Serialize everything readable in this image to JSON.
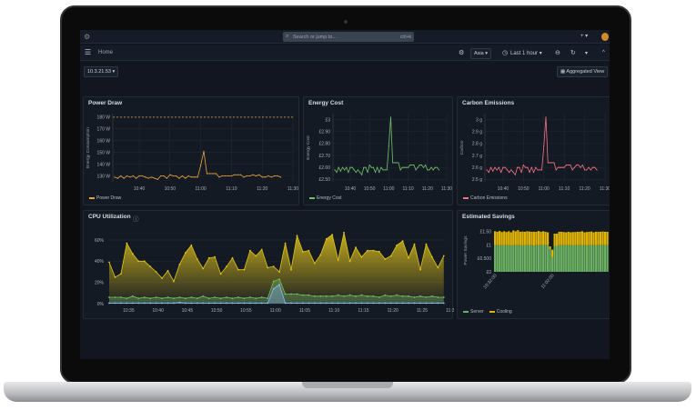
{
  "topbar": {
    "search_placeholder": "Search or jump to...",
    "shortcut": "ctrl+k",
    "add_label": "+ ▾"
  },
  "navbar": {
    "breadcrumb": "Home",
    "tz_label": "Asia ▾",
    "time_range": "Last 1 hour ▾",
    "refresh_chevron": "▾",
    "collapse": "^"
  },
  "controls": {
    "host_select": "10.3.21.53 ▾",
    "aggregated_view": "Aggregated View"
  },
  "colors": {
    "power": "#e8a33a",
    "cost": "#73bf69",
    "carbon": "#f2737f",
    "cpu_main": "#e3c51a",
    "cpu_green": "#73bf69",
    "cpu_blue": "#8ab8ff",
    "server": "#6cb163",
    "cooling": "#e0b400"
  },
  "panels": {
    "power": {
      "title": "Power Draw",
      "ylabel": "Energy Consumption",
      "yticks": [
        "130 W",
        "140 W",
        "150 W",
        "160 W",
        "170 W",
        "180 W"
      ],
      "ymin": 125,
      "ymax": 183,
      "threshold": 180,
      "legend": "Power Draw",
      "values": [
        129,
        128,
        130,
        128,
        130,
        129,
        130,
        128,
        130,
        130,
        129,
        128,
        129,
        128,
        127,
        130,
        130,
        128,
        131,
        130,
        130,
        128,
        130,
        128,
        130,
        129,
        129,
        129,
        139,
        151,
        132,
        132,
        132,
        132,
        129,
        130,
        130,
        130,
        130,
        131,
        131,
        131,
        129,
        130,
        130,
        131,
        130,
        131,
        129,
        129,
        130,
        129,
        130,
        130,
        129
      ]
    },
    "cost": {
      "title": "Energy Cost",
      "ylabel": "Energy Cost",
      "yticks": [
        "£2.50",
        "£2.60",
        "£2.70",
        "£2.80",
        "£2.90",
        "£3"
      ],
      "ymin": 2.48,
      "ymax": 3.05,
      "legend": "Energy Cost",
      "values": [
        2.58,
        2.56,
        2.6,
        2.57,
        2.6,
        2.58,
        2.6,
        2.56,
        2.6,
        2.6,
        2.58,
        2.56,
        2.58,
        2.56,
        2.54,
        2.6,
        2.6,
        2.56,
        2.62,
        2.6,
        2.6,
        2.56,
        2.6,
        2.56,
        2.6,
        2.58,
        2.58,
        2.58,
        2.78,
        3.02,
        2.64,
        2.64,
        2.64,
        2.64,
        2.58,
        2.6,
        2.6,
        2.6,
        2.6,
        2.62,
        2.62,
        2.62,
        2.58,
        2.6,
        2.62,
        2.62,
        2.6,
        2.62,
        2.58,
        2.58,
        2.6,
        2.58,
        2.6,
        2.6,
        2.58
      ]
    },
    "carbon": {
      "title": "Carbon Emissions",
      "ylabel": "Carbon",
      "yticks": [
        "2.5 g",
        "2.6 g",
        "2.7 g",
        "2.8 g",
        "2.9 g",
        "3 g"
      ],
      "ymin": 2.48,
      "ymax": 3.05,
      "legend": "Carbon Emissions",
      "values": [
        2.58,
        2.56,
        2.6,
        2.57,
        2.6,
        2.58,
        2.6,
        2.56,
        2.6,
        2.6,
        2.58,
        2.56,
        2.58,
        2.56,
        2.54,
        2.6,
        2.6,
        2.56,
        2.62,
        2.6,
        2.6,
        2.56,
        2.6,
        2.56,
        2.6,
        2.58,
        2.58,
        2.58,
        2.78,
        3.02,
        2.64,
        2.64,
        2.64,
        2.64,
        2.58,
        2.6,
        2.6,
        2.6,
        2.6,
        2.62,
        2.62,
        2.62,
        2.58,
        2.6,
        2.62,
        2.62,
        2.6,
        2.62,
        2.58,
        2.58,
        2.6,
        2.58,
        2.6,
        2.6,
        2.58
      ]
    },
    "xticks": [
      "10:40",
      "10:50",
      "11:00",
      "11:10",
      "11:20",
      "11:30"
    ],
    "cpu": {
      "title": "CPU Utilization",
      "info_icon": "info-circle-icon",
      "yticks": [
        "0%",
        "20%",
        "40%",
        "60%"
      ],
      "ymax": 72,
      "xticks": [
        "10:35",
        "10:40",
        "10:45",
        "10:50",
        "10:55",
        "11:00",
        "11:05",
        "11:10",
        "11:15",
        "11:20",
        "11:25",
        "11:30"
      ],
      "series": [
        {
          "values": [
            39,
            25,
            28,
            57,
            47,
            40,
            40,
            35,
            30,
            24,
            31,
            21,
            37,
            48,
            55,
            42,
            33,
            43,
            44,
            28,
            35,
            43,
            32,
            32,
            50,
            45,
            51,
            34,
            35,
            30,
            57,
            32,
            64,
            49,
            50,
            38,
            46,
            61,
            65,
            41,
            67,
            40,
            53,
            44,
            50,
            50,
            49,
            42,
            45,
            55,
            59,
            43,
            56,
            32,
            56,
            44,
            34,
            45
          ]
        },
        {
          "values": [
            6,
            6,
            6,
            5,
            7,
            5,
            6,
            5,
            6,
            5,
            6,
            5,
            6,
            5,
            6,
            5,
            7,
            5,
            6,
            5,
            6,
            5,
            6,
            5,
            6,
            5,
            6,
            5,
            21,
            23,
            9,
            9,
            9,
            8,
            8,
            7,
            7,
            7,
            7,
            8,
            7,
            8,
            7,
            8,
            7,
            7,
            6,
            8,
            7,
            8,
            7,
            7,
            6,
            7,
            6,
            7,
            6,
            6
          ]
        },
        {
          "values": [
            0.5,
            0.5,
            0.5,
            0.5,
            0.5,
            0.5,
            0.5,
            0.5,
            0.5,
            0.5,
            0.5,
            0.5,
            1,
            0.5,
            0.5,
            0.5,
            0.5,
            0.5,
            0.5,
            0.5,
            0.5,
            0.5,
            0.5,
            0.5,
            0.5,
            0.5,
            0.5,
            0.5,
            14,
            18,
            0.5,
            0.5,
            0.5,
            0.5,
            0.5,
            0.5,
            0.5,
            0.5,
            0.5,
            0.5,
            0.5,
            0.5,
            0.5,
            0.5,
            0.5,
            0.5,
            0.5,
            0.5,
            0.5,
            0.5,
            0.5,
            0.5,
            0.5,
            0.5,
            0.5,
            0.5,
            0.5,
            0.5
          ]
        }
      ]
    },
    "savings": {
      "title": "Estimated Savings",
      "ylabel": "Power Savings",
      "yticks": [
        "£0",
        "£0.500",
        "£1",
        "£1.50"
      ],
      "ymax": 1.6,
      "xticks": [
        "10:32:00",
        "11:02:00"
      ],
      "legend": [
        "Server",
        "Cooling"
      ],
      "server": [
        1,
        1,
        1,
        0.99,
        1,
        1,
        1,
        0.98,
        1,
        1,
        1,
        1,
        0.99,
        1,
        1,
        1,
        1,
        0.98,
        1,
        1,
        1,
        1,
        1,
        1,
        0.85,
        0.55,
        0.97,
        0.97,
        1,
        1,
        1,
        1,
        1,
        1,
        0.99,
        1,
        1,
        1,
        1,
        1,
        0.99,
        1,
        1,
        1,
        1,
        1,
        1,
        1,
        1,
        1
      ],
      "cooling": [
        0.52,
        0.5,
        0.53,
        0.5,
        0.52,
        0.49,
        0.52,
        0.5,
        0.55,
        0.52,
        0.56,
        0.5,
        0.52,
        0.5,
        0.52,
        0.51,
        0.5,
        0.52,
        0.5,
        0.53,
        0.5,
        0.52,
        0.5,
        0.48,
        0.1,
        0.28,
        0.46,
        0.46,
        0.5,
        0.5,
        0.49,
        0.48,
        0.5,
        0.48,
        0.5,
        0.49,
        0.5,
        0.5,
        0.52,
        0.48,
        0.5,
        0.5,
        0.51,
        0.48,
        0.5,
        0.5,
        0.5,
        0.51,
        0.5,
        0.5
      ]
    }
  }
}
